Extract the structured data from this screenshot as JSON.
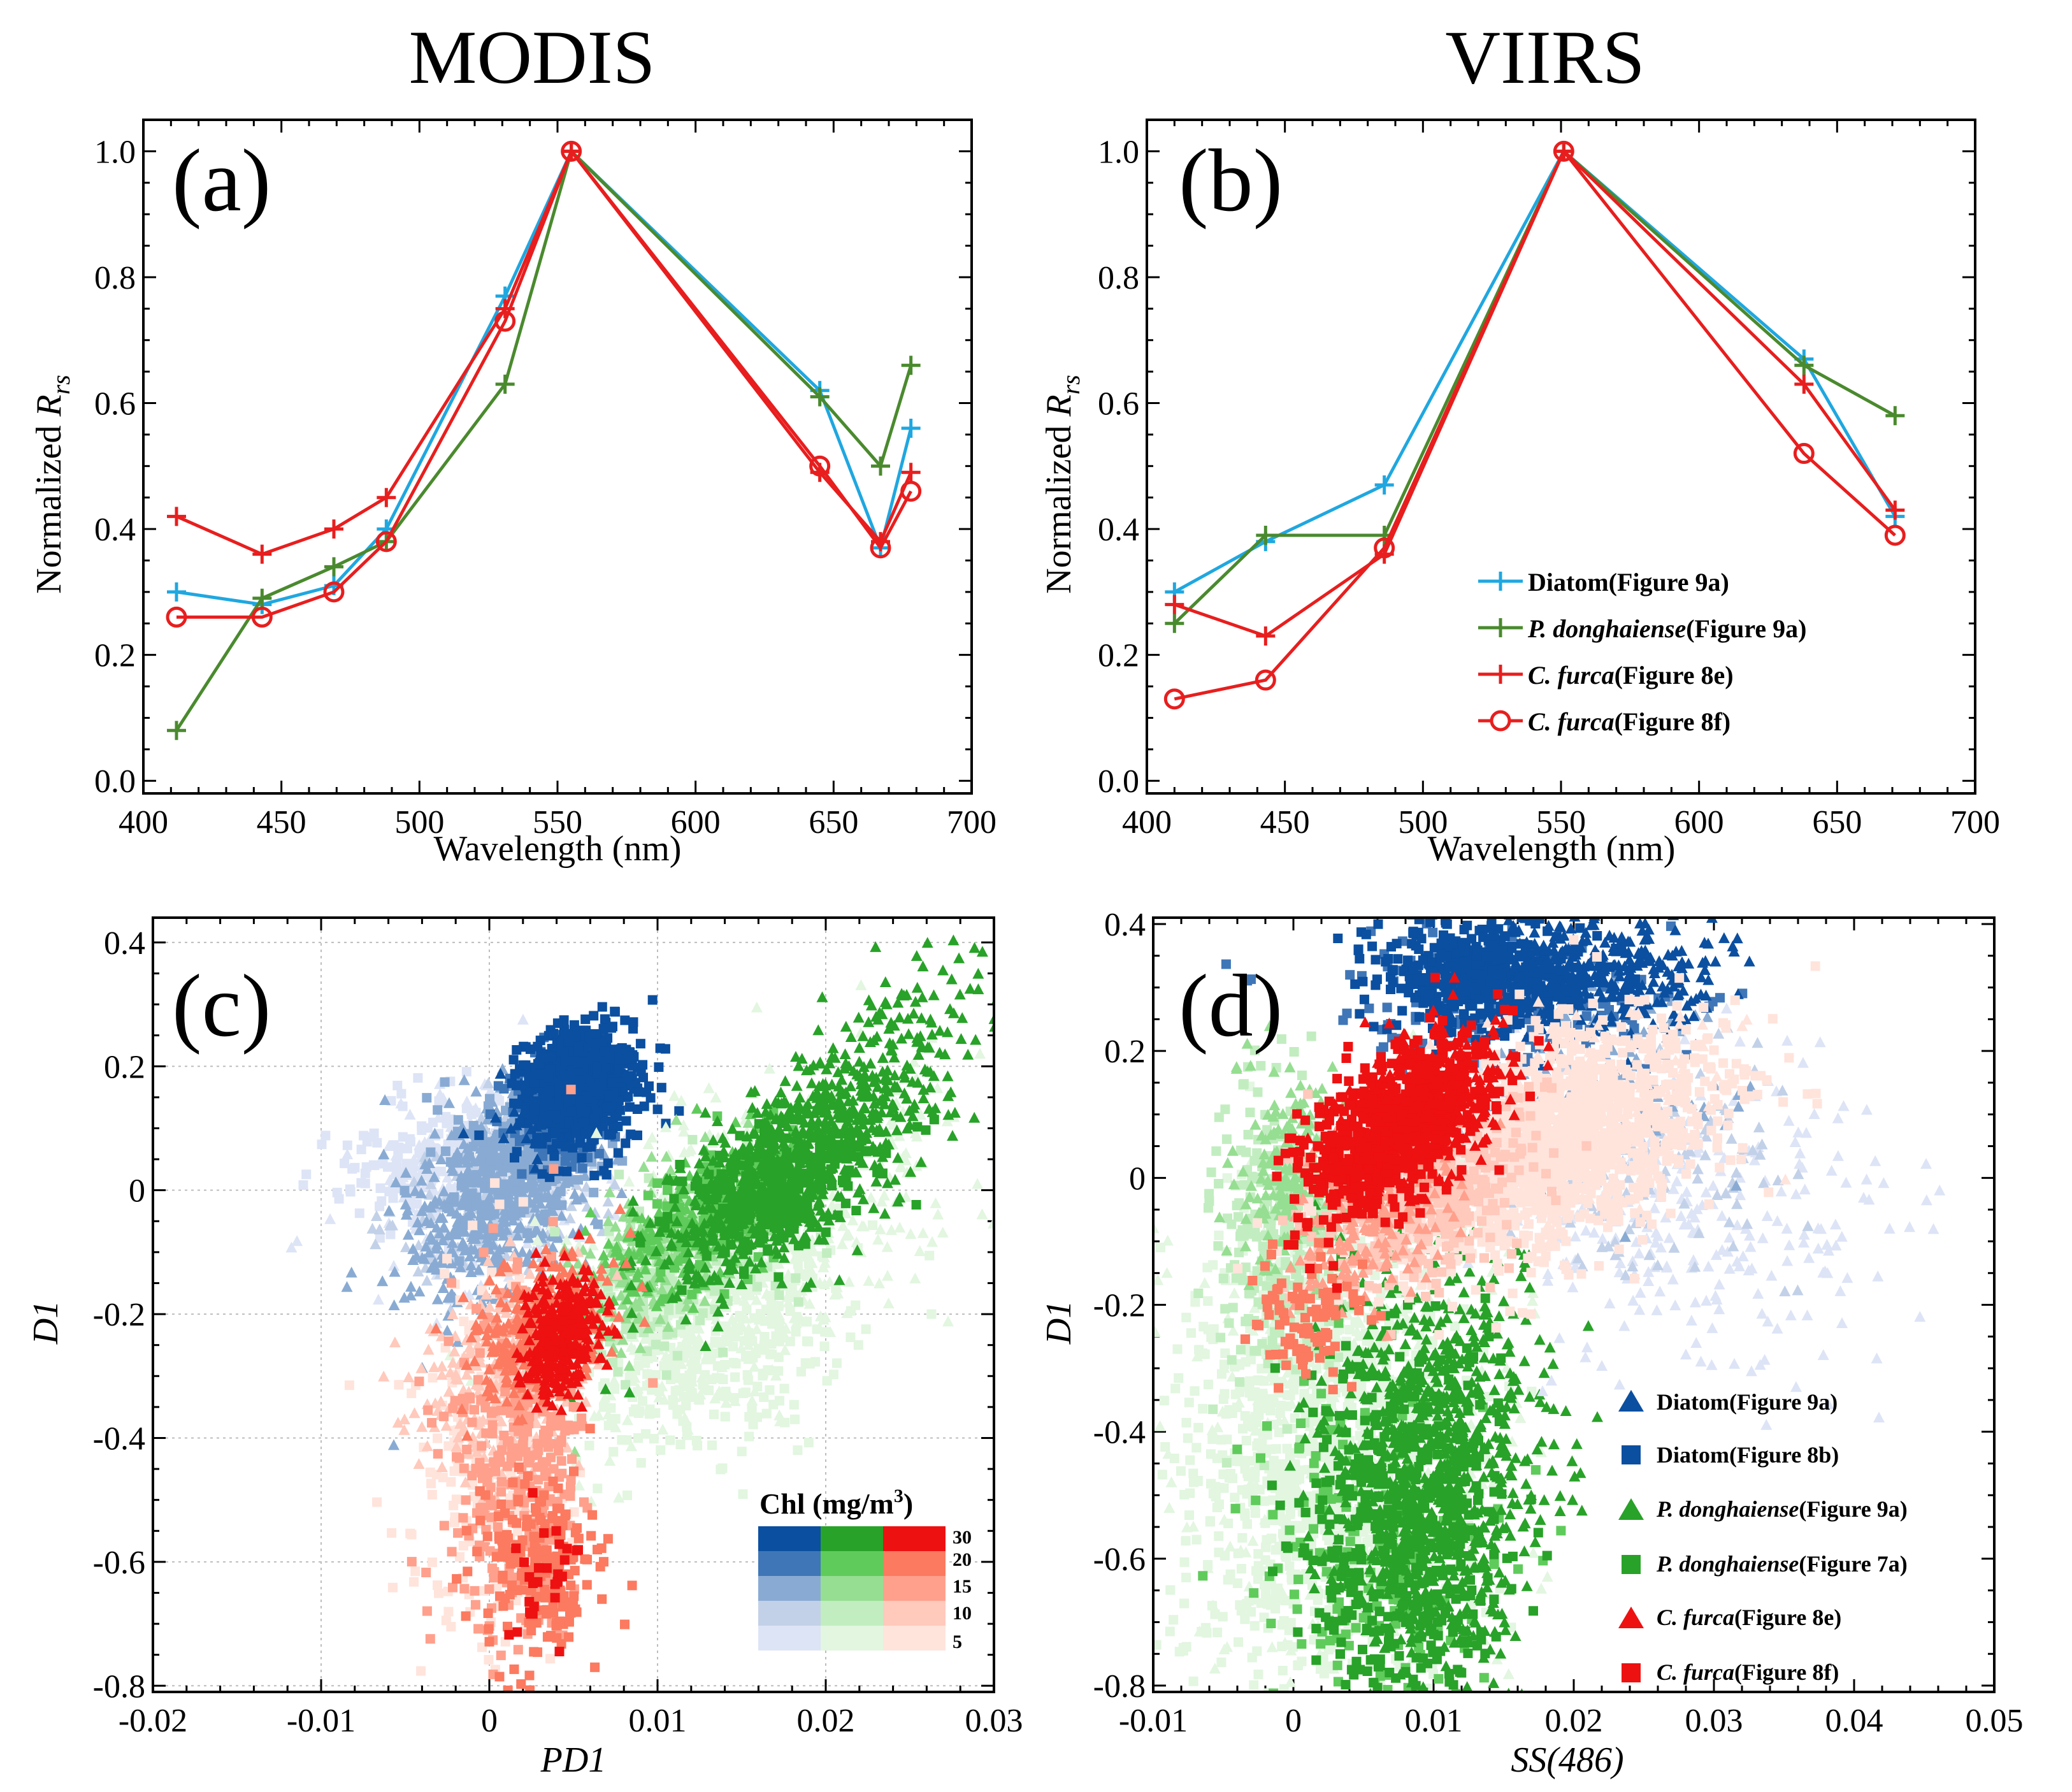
{
  "figure": {
    "column_titles": [
      "MODIS",
      "VIIRS"
    ],
    "colors": {
      "diatom_line": "#1FA7E0",
      "pdong_line": "#4A8A2E",
      "cfurca_line": "#E81E1E",
      "diatom": [
        "#DDE4F6",
        "#C2D1E8",
        "#89ABD3",
        "#3F76B7",
        "#0B4FA0"
      ],
      "pdong": [
        "#E2F6E0",
        "#C2EDC0",
        "#96DE92",
        "#5FCB5B",
        "#28A228"
      ],
      "cfurca": [
        "#FFE4DC",
        "#FFC9BC",
        "#FFA08C",
        "#FB7A60",
        "#EE1111"
      ]
    }
  },
  "chart_data": [
    {
      "id": "a",
      "type": "line",
      "panel_label": "(a)",
      "title": "MODIS",
      "xlabel": "Wavelength (nm)",
      "ylabel_main": "Normalized ",
      "ylabel_r": "R",
      "ylabel_sub": "rs",
      "xlim": [
        400,
        700
      ],
      "ylim": [
        -0.02,
        1.05
      ],
      "xticks": [
        400,
        450,
        500,
        550,
        600,
        650,
        700
      ],
      "yticks": [
        0.0,
        0.2,
        0.4,
        0.6,
        0.8,
        1.0
      ],
      "xtick_labels": [
        "400",
        "450",
        "500",
        "550",
        "600",
        "650",
        "700"
      ],
      "ytick_labels": [
        "0.0",
        "0.2",
        "0.4",
        "0.6",
        "0.8",
        "1.0"
      ],
      "series": [
        {
          "name": "Diatom(Figure 9a)",
          "color": "#1FA7E0",
          "marker": "plus",
          "x": [
            412,
            443,
            469,
            488,
            531,
            555,
            645,
            667,
            678
          ],
          "y": [
            0.3,
            0.28,
            0.31,
            0.4,
            0.77,
            1.0,
            0.62,
            0.37,
            0.56
          ]
        },
        {
          "name": "P. donghaiense(Figure 9a)",
          "color": "#4A8A2E",
          "marker": "plus",
          "x": [
            412,
            443,
            469,
            488,
            531,
            555,
            645,
            667,
            678
          ],
          "y": [
            0.08,
            0.29,
            0.34,
            0.38,
            0.63,
            1.0,
            0.61,
            0.5,
            0.66
          ]
        },
        {
          "name": "C. furca(Figure 8e)",
          "color": "#E81E1E",
          "marker": "plus",
          "x": [
            412,
            443,
            469,
            488,
            531,
            555,
            645,
            667,
            678
          ],
          "y": [
            0.42,
            0.36,
            0.4,
            0.45,
            0.75,
            1.0,
            0.49,
            0.38,
            0.49
          ]
        },
        {
          "name": "C. furca(Figure 8f)",
          "color": "#E81E1E",
          "marker": "circle",
          "x": [
            412,
            443,
            469,
            488,
            531,
            555,
            645,
            667,
            678
          ],
          "y": [
            0.26,
            0.26,
            0.3,
            0.38,
            0.73,
            1.0,
            0.5,
            0.37,
            0.46
          ]
        }
      ]
    },
    {
      "id": "b",
      "type": "line",
      "panel_label": "(b)",
      "title": "VIIRS",
      "xlabel": "Wavelength (nm)",
      "ylabel_main": "Normalized ",
      "ylabel_r": "R",
      "ylabel_sub": "rs",
      "xlim": [
        400,
        700
      ],
      "ylim": [
        -0.02,
        1.05
      ],
      "xticks": [
        400,
        450,
        500,
        550,
        600,
        650,
        700
      ],
      "yticks": [
        0.0,
        0.2,
        0.4,
        0.6,
        0.8,
        1.0
      ],
      "xtick_labels": [
        "400",
        "450",
        "500",
        "550",
        "600",
        "650",
        "700"
      ],
      "ytick_labels": [
        "0.0",
        "0.2",
        "0.4",
        "0.6",
        "0.8",
        "1.0"
      ],
      "legend": {
        "location": "lower-right",
        "entries": [
          {
            "italic": "",
            "text": "Diatom(Figure 9a)",
            "color": "#1FA7E0",
            "marker": "plus"
          },
          {
            "italic": "P. donghaiense",
            "text": "(Figure 9a)",
            "color": "#4A8A2E",
            "marker": "plus"
          },
          {
            "italic": "C. furca",
            "text": "(Figure 8e)",
            "color": "#E81E1E",
            "marker": "plus"
          },
          {
            "italic": "C. furca",
            "text": "(Figure 8f)",
            "color": "#E81E1E",
            "marker": "circle"
          }
        ]
      },
      "series": [
        {
          "name": "Diatom(Figure 9a)",
          "color": "#1FA7E0",
          "marker": "plus",
          "x": [
            410,
            443,
            486,
            551,
            638,
            671
          ],
          "y": [
            0.3,
            0.38,
            0.47,
            1.0,
            0.67,
            0.42
          ]
        },
        {
          "name": "P. donghaiense(Figure 9a)",
          "color": "#4A8A2E",
          "marker": "plus",
          "x": [
            410,
            443,
            486,
            551,
            638,
            671
          ],
          "y": [
            0.25,
            0.39,
            0.39,
            1.0,
            0.66,
            0.58
          ]
        },
        {
          "name": "C. furca(Figure 8e)",
          "color": "#E81E1E",
          "marker": "plus",
          "x": [
            410,
            443,
            486,
            551,
            638,
            671
          ],
          "y": [
            0.28,
            0.23,
            0.36,
            1.0,
            0.63,
            0.43
          ]
        },
        {
          "name": "C. furca(Figure 8f)",
          "color": "#E81E1E",
          "marker": "circle",
          "x": [
            410,
            443,
            486,
            551,
            638,
            671
          ],
          "y": [
            0.13,
            0.16,
            0.37,
            1.0,
            0.52,
            0.39
          ]
        }
      ]
    },
    {
      "id": "c",
      "type": "scatter",
      "panel_label": "(c)",
      "xlabel": "PD1",
      "ylabel": "D1",
      "xlim": [
        -0.02,
        0.03
      ],
      "ylim": [
        -0.81,
        0.44
      ],
      "xticks": [
        -0.02,
        -0.01,
        0,
        0.01,
        0.02,
        0.03
      ],
      "yticks": [
        -0.8,
        -0.6,
        -0.4,
        -0.2,
        0,
        0.2,
        0.4
      ],
      "xtick_labels": [
        "-0.02",
        "-0.01",
        "0",
        "0.01",
        "0.02",
        "0.03"
      ],
      "ytick_labels": [
        "-0.8",
        "-0.6",
        "-0.4",
        "-0.2",
        "0",
        "0.2",
        "0.4"
      ],
      "grid": true,
      "colorbar": {
        "title_prefix": "Chl (mg/m",
        "title_sup": "3",
        "title_suffix": ")",
        "levels": [
          "30",
          "20",
          "15",
          "10",
          "5"
        ]
      },
      "groups": [
        {
          "species": "diatom",
          "marker": "triangle",
          "level": 0,
          "n": 300,
          "cx": 0.0,
          "cy": 0.02,
          "sx": 0.0035,
          "sy": 0.08,
          "rho": 0.3
        },
        {
          "species": "diatom",
          "marker": "square",
          "level": 0,
          "n": 150,
          "cx": -0.004,
          "cy": 0.05,
          "sx": 0.003,
          "sy": 0.05,
          "rho": 0.2
        },
        {
          "species": "diatom",
          "marker": "triangle",
          "level": 1,
          "n": 200,
          "cx": 0.0005,
          "cy": -0.02,
          "sx": 0.003,
          "sy": 0.07,
          "rho": 0.3
        },
        {
          "species": "diatom",
          "marker": "triangle",
          "level": 2,
          "n": 450,
          "cx": 0.0005,
          "cy": -0.02,
          "sx": 0.0028,
          "sy": 0.09,
          "rho": 0.35
        },
        {
          "species": "diatom",
          "marker": "square",
          "level": 2,
          "n": 250,
          "cx": 0.002,
          "cy": 0.05,
          "sx": 0.0022,
          "sy": 0.05,
          "rho": 0.2
        },
        {
          "species": "diatom",
          "marker": "square",
          "level": 3,
          "n": 150,
          "cx": 0.004,
          "cy": 0.12,
          "sx": 0.0015,
          "sy": 0.04,
          "rho": 0.1
        },
        {
          "species": "diatom",
          "marker": "triangle",
          "level": 4,
          "n": 40,
          "cx": 0.003,
          "cy": 0.12,
          "sx": 0.0015,
          "sy": 0.04,
          "rho": 0.1
        },
        {
          "species": "diatom",
          "marker": "square",
          "level": 4,
          "n": 700,
          "cx": 0.0055,
          "cy": 0.17,
          "sx": 0.0017,
          "sy": 0.048,
          "rho": 0.1
        },
        {
          "species": "pdong",
          "marker": "triangle",
          "level": 0,
          "n": 650,
          "cx": 0.015,
          "cy": -0.1,
          "sx": 0.0055,
          "sy": 0.13,
          "rho": 0.55
        },
        {
          "species": "pdong",
          "marker": "square",
          "level": 0,
          "n": 350,
          "cx": 0.013,
          "cy": -0.25,
          "sx": 0.004,
          "sy": 0.09,
          "rho": 0.3
        },
        {
          "species": "pdong",
          "marker": "square",
          "level": 1,
          "n": 250,
          "cx": 0.011,
          "cy": -0.12,
          "sx": 0.0035,
          "sy": 0.08,
          "rho": 0.5
        },
        {
          "species": "pdong",
          "marker": "triangle",
          "level": 2,
          "n": 200,
          "cx": 0.01,
          "cy": -0.1,
          "sx": 0.003,
          "sy": 0.08,
          "rho": 0.6
        },
        {
          "species": "pdong",
          "marker": "triangle",
          "level": 3,
          "n": 200,
          "cx": 0.012,
          "cy": -0.05,
          "sx": 0.003,
          "sy": 0.07,
          "rho": 0.6
        },
        {
          "species": "pdong",
          "marker": "square",
          "level": 3,
          "n": 150,
          "cx": 0.014,
          "cy": -0.02,
          "sx": 0.0025,
          "sy": 0.06,
          "rho": 0.5
        },
        {
          "species": "pdong",
          "marker": "triangle",
          "level": 4,
          "n": 800,
          "cx": 0.019,
          "cy": 0.07,
          "sx": 0.0045,
          "sy": 0.12,
          "rho": 0.75
        },
        {
          "species": "pdong",
          "marker": "square",
          "level": 4,
          "n": 250,
          "cx": 0.017,
          "cy": 0.0,
          "sx": 0.003,
          "sy": 0.06,
          "rho": 0.5
        },
        {
          "species": "cfurca",
          "marker": "square",
          "level": 0,
          "n": 200,
          "cx": 0.0,
          "cy": -0.45,
          "sx": 0.0025,
          "sy": 0.18,
          "rho": 0.0
        },
        {
          "species": "cfurca",
          "marker": "triangle",
          "level": 1,
          "n": 300,
          "cx": 0.001,
          "cy": -0.3,
          "sx": 0.0025,
          "sy": 0.08,
          "rho": 0.2
        },
        {
          "species": "cfurca",
          "marker": "square",
          "level": 2,
          "n": 350,
          "cx": 0.0015,
          "cy": -0.42,
          "sx": 0.0022,
          "sy": 0.16,
          "rho": 0.1
        },
        {
          "species": "cfurca",
          "marker": "triangle",
          "level": 3,
          "n": 300,
          "cx": 0.003,
          "cy": -0.22,
          "sx": 0.002,
          "sy": 0.06,
          "rho": 0.3
        },
        {
          "species": "cfurca",
          "marker": "square",
          "level": 3,
          "n": 200,
          "cx": 0.003,
          "cy": -0.6,
          "sx": 0.0018,
          "sy": 0.07,
          "rho": 0.0
        },
        {
          "species": "cfurca",
          "marker": "triangle",
          "level": 4,
          "n": 350,
          "cx": 0.0042,
          "cy": -0.24,
          "sx": 0.0012,
          "sy": 0.05,
          "rho": 0.2
        },
        {
          "species": "cfurca",
          "marker": "square",
          "level": 4,
          "n": 30,
          "cx": 0.003,
          "cy": -0.62,
          "sx": 0.001,
          "sy": 0.06,
          "rho": 0.0
        }
      ]
    },
    {
      "id": "d",
      "type": "scatter",
      "panel_label": "(d)",
      "xlabel": "SS(486)",
      "ylabel": "D1",
      "xlim": [
        -0.01,
        0.05
      ],
      "ylim": [
        -0.81,
        0.41
      ],
      "xticks": [
        -0.01,
        0,
        0.01,
        0.02,
        0.03,
        0.04,
        0.05
      ],
      "yticks": [
        -0.8,
        -0.6,
        -0.4,
        -0.2,
        0,
        0.2,
        0.4
      ],
      "xtick_labels": [
        "-0.01",
        "0",
        "0.01",
        "0.02",
        "0.03",
        "0.04",
        "0.05"
      ],
      "ytick_labels": [
        "-0.8",
        "-0.6",
        "-0.4",
        "-0.2",
        "0",
        "0.2",
        "0.4"
      ],
      "grid": false,
      "legend": {
        "location": "lower-right",
        "entries": [
          {
            "italic": "",
            "text": "Diatom(Figure 9a)",
            "color": "#0B4FA0",
            "marker": "triangle"
          },
          {
            "italic": "",
            "text": "Diatom(Figure 8b)",
            "color": "#0B4FA0",
            "marker": "square"
          },
          {
            "italic": "P. donghaiense",
            "text": "(Figure 9a)",
            "color": "#28A228",
            "marker": "triangle"
          },
          {
            "italic": "P. donghaiense",
            "text": "(Figure 7a)",
            "color": "#28A228",
            "marker": "square"
          },
          {
            "italic": "C. furca",
            "text": "(Figure 8e)",
            "color": "#EE1111",
            "marker": "triangle"
          },
          {
            "italic": "C. furca",
            "text": "(Figure 8f)",
            "color": "#EE1111",
            "marker": "square"
          }
        ]
      },
      "groups": [
        {
          "species": "pdong",
          "marker": "square",
          "level": 0,
          "n": 1000,
          "cx": 0.002,
          "cy": -0.45,
          "sx": 0.005,
          "sy": 0.18,
          "rho": 0.0
        },
        {
          "species": "pdong",
          "marker": "triangle",
          "level": 0,
          "n": 400,
          "cx": 0.004,
          "cy": -0.4,
          "sx": 0.006,
          "sy": 0.2,
          "rho": 0.0
        },
        {
          "species": "pdong",
          "marker": "square",
          "level": 1,
          "n": 300,
          "cx": -0.001,
          "cy": -0.08,
          "sx": 0.0025,
          "sy": 0.12,
          "rho": 0.0
        },
        {
          "species": "pdong",
          "marker": "triangle",
          "level": 2,
          "n": 200,
          "cx": 0.0,
          "cy": 0.0,
          "sx": 0.002,
          "sy": 0.08,
          "rho": 0.0
        },
        {
          "species": "pdong",
          "marker": "square",
          "level": 3,
          "n": 200,
          "cx": 0.006,
          "cy": -0.6,
          "sx": 0.004,
          "sy": 0.12,
          "rho": 0.0
        },
        {
          "species": "pdong",
          "marker": "triangle",
          "level": 4,
          "n": 900,
          "cx": 0.01,
          "cy": -0.45,
          "sx": 0.0038,
          "sy": 0.17,
          "rho": 0.0
        },
        {
          "species": "pdong",
          "marker": "square",
          "level": 4,
          "n": 500,
          "cx": 0.008,
          "cy": -0.55,
          "sx": 0.0035,
          "sy": 0.16,
          "rho": 0.0
        },
        {
          "species": "diatom",
          "marker": "triangle",
          "level": 0,
          "n": 300,
          "cx": 0.028,
          "cy": -0.05,
          "sx": 0.008,
          "sy": 0.13,
          "rho": -0.2
        },
        {
          "species": "diatom",
          "marker": "triangle",
          "level": 1,
          "n": 150,
          "cx": 0.025,
          "cy": 0.05,
          "sx": 0.006,
          "sy": 0.1,
          "rho": 0.0
        },
        {
          "species": "diatom",
          "marker": "triangle",
          "level": 2,
          "n": 100,
          "cx": 0.023,
          "cy": 0.15,
          "sx": 0.005,
          "sy": 0.08,
          "rho": 0.0
        },
        {
          "species": "diatom",
          "marker": "square",
          "level": 3,
          "n": 150,
          "cx": 0.015,
          "cy": 0.28,
          "sx": 0.006,
          "sy": 0.06,
          "rho": 0.0
        },
        {
          "species": "diatom",
          "marker": "square",
          "level": 4,
          "n": 500,
          "cx": 0.013,
          "cy": 0.32,
          "sx": 0.0035,
          "sy": 0.045,
          "rho": 0.0
        },
        {
          "species": "diatom",
          "marker": "triangle",
          "level": 4,
          "n": 350,
          "cx": 0.022,
          "cy": 0.32,
          "sx": 0.004,
          "sy": 0.05,
          "rho": 0.0
        },
        {
          "species": "cfurca",
          "marker": "square",
          "level": 0,
          "n": 1400,
          "cx": 0.018,
          "cy": 0.05,
          "sx": 0.006,
          "sy": 0.09,
          "rho": 0.45
        },
        {
          "species": "cfurca",
          "marker": "triangle",
          "level": 0,
          "n": 300,
          "cx": 0.02,
          "cy": 0.1,
          "sx": 0.005,
          "sy": 0.08,
          "rho": 0.4
        },
        {
          "species": "cfurca",
          "marker": "square",
          "level": 1,
          "n": 400,
          "cx": 0.01,
          "cy": -0.02,
          "sx": 0.004,
          "sy": 0.07,
          "rho": 0.4
        },
        {
          "species": "cfurca",
          "marker": "triangle",
          "level": 2,
          "n": 200,
          "cx": 0.006,
          "cy": -0.05,
          "sx": 0.003,
          "sy": 0.08,
          "rho": 0.4
        },
        {
          "species": "cfurca",
          "marker": "square",
          "level": 3,
          "n": 100,
          "cx": 0.001,
          "cy": -0.22,
          "sx": 0.002,
          "sy": 0.05,
          "rho": 0.0
        },
        {
          "species": "cfurca",
          "marker": "square",
          "level": 4,
          "n": 700,
          "cx": 0.007,
          "cy": 0.08,
          "sx": 0.0032,
          "sy": 0.07,
          "rho": 0.55
        },
        {
          "species": "cfurca",
          "marker": "triangle",
          "level": 4,
          "n": 300,
          "cx": 0.01,
          "cy": 0.12,
          "sx": 0.003,
          "sy": 0.06,
          "rho": 0.4
        }
      ]
    }
  ]
}
